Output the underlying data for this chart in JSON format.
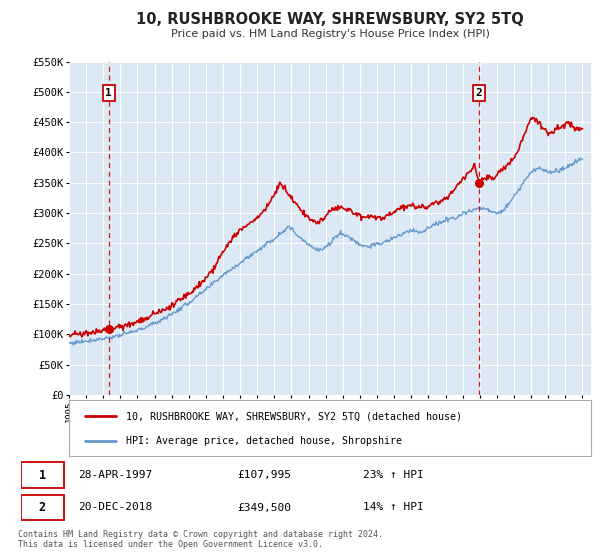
{
  "title": "10, RUSHBROOKE WAY, SHREWSBURY, SY2 5TQ",
  "subtitle": "Price paid vs. HM Land Registry's House Price Index (HPI)",
  "legend_line1": "10, RUSHBROOKE WAY, SHREWSBURY, SY2 5TQ (detached house)",
  "legend_line2": "HPI: Average price, detached house, Shropshire",
  "sale1_date": "28-APR-1997",
  "sale1_price": 107995,
  "sale1_hpi": "23% ↑ HPI",
  "sale2_date": "20-DEC-2018",
  "sale2_price": 349500,
  "sale2_hpi": "14% ↑ HPI",
  "footnote": "Contains HM Land Registry data © Crown copyright and database right 2024.\nThis data is licensed under the Open Government Licence v3.0.",
  "xmin": 1995.0,
  "xmax": 2025.5,
  "ymin": 0,
  "ymax": 550000,
  "sale1_x": 1997.32,
  "sale2_x": 2018.97,
  "red_color": "#cc0000",
  "blue_color": "#6699cc",
  "plot_bg": "#dce9f5",
  "grid_color": "#ffffff",
  "hpi_anchors": [
    [
      1995.0,
      85000
    ],
    [
      1996.0,
      89000
    ],
    [
      1997.0,
      93000
    ],
    [
      1998.0,
      98000
    ],
    [
      1999.0,
      106000
    ],
    [
      2000.0,
      118000
    ],
    [
      2001.0,
      133000
    ],
    [
      2002.0,
      152000
    ],
    [
      2003.0,
      173000
    ],
    [
      2004.0,
      198000
    ],
    [
      2005.0,
      218000
    ],
    [
      2006.0,
      238000
    ],
    [
      2007.0,
      258000
    ],
    [
      2007.8,
      278000
    ],
    [
      2008.5,
      260000
    ],
    [
      2009.5,
      238000
    ],
    [
      2010.0,
      242000
    ],
    [
      2010.8,
      268000
    ],
    [
      2011.5,
      258000
    ],
    [
      2012.0,
      248000
    ],
    [
      2012.5,
      245000
    ],
    [
      2013.0,
      248000
    ],
    [
      2013.5,
      252000
    ],
    [
      2014.0,
      260000
    ],
    [
      2014.5,
      265000
    ],
    [
      2015.0,
      272000
    ],
    [
      2015.5,
      268000
    ],
    [
      2016.0,
      275000
    ],
    [
      2016.5,
      282000
    ],
    [
      2017.0,
      288000
    ],
    [
      2017.5,
      293000
    ],
    [
      2018.0,
      298000
    ],
    [
      2018.5,
      305000
    ],
    [
      2019.0,
      308000
    ],
    [
      2019.5,
      305000
    ],
    [
      2020.0,
      298000
    ],
    [
      2020.5,
      308000
    ],
    [
      2021.0,
      328000
    ],
    [
      2021.5,
      348000
    ],
    [
      2022.0,
      368000
    ],
    [
      2022.5,
      375000
    ],
    [
      2023.0,
      368000
    ],
    [
      2023.5,
      368000
    ],
    [
      2024.0,
      375000
    ],
    [
      2024.5,
      382000
    ],
    [
      2025.0,
      390000
    ]
  ],
  "red_anchors": [
    [
      1995.0,
      100000
    ],
    [
      1995.5,
      100500
    ],
    [
      1996.0,
      102000
    ],
    [
      1996.5,
      104000
    ],
    [
      1997.32,
      107995
    ],
    [
      1997.8,
      111000
    ],
    [
      1998.5,
      116000
    ],
    [
      1999.0,
      120000
    ],
    [
      1999.5,
      125000
    ],
    [
      2000.0,
      133000
    ],
    [
      2000.5,
      140000
    ],
    [
      2001.0,
      148000
    ],
    [
      2001.5,
      158000
    ],
    [
      2002.0,
      168000
    ],
    [
      2002.5,
      180000
    ],
    [
      2003.0,
      192000
    ],
    [
      2003.5,
      210000
    ],
    [
      2004.0,
      235000
    ],
    [
      2004.5,
      258000
    ],
    [
      2005.0,
      272000
    ],
    [
      2005.5,
      282000
    ],
    [
      2006.0,
      290000
    ],
    [
      2006.5,
      308000
    ],
    [
      2007.0,
      330000
    ],
    [
      2007.3,
      348000
    ],
    [
      2007.8,
      330000
    ],
    [
      2008.3,
      315000
    ],
    [
      2008.8,
      298000
    ],
    [
      2009.2,
      285000
    ],
    [
      2009.8,
      290000
    ],
    [
      2010.2,
      302000
    ],
    [
      2010.8,
      310000
    ],
    [
      2011.2,
      305000
    ],
    [
      2011.8,
      298000
    ],
    [
      2012.2,
      292000
    ],
    [
      2012.8,
      295000
    ],
    [
      2013.2,
      292000
    ],
    [
      2013.8,
      298000
    ],
    [
      2014.2,
      305000
    ],
    [
      2014.8,
      310000
    ],
    [
      2015.2,
      312000
    ],
    [
      2015.8,
      308000
    ],
    [
      2016.2,
      315000
    ],
    [
      2016.8,
      322000
    ],
    [
      2017.2,
      330000
    ],
    [
      2017.5,
      340000
    ],
    [
      2017.8,
      350000
    ],
    [
      2018.2,
      360000
    ],
    [
      2018.5,
      372000
    ],
    [
      2018.7,
      380000
    ],
    [
      2018.97,
      349500
    ],
    [
      2019.2,
      355000
    ],
    [
      2019.5,
      362000
    ],
    [
      2019.8,
      358000
    ],
    [
      2020.2,
      370000
    ],
    [
      2020.5,
      375000
    ],
    [
      2020.8,
      385000
    ],
    [
      2021.2,
      400000
    ],
    [
      2021.5,
      422000
    ],
    [
      2021.8,
      445000
    ],
    [
      2022.0,
      458000
    ],
    [
      2022.2,
      455000
    ],
    [
      2022.5,
      448000
    ],
    [
      2022.8,
      438000
    ],
    [
      2023.0,
      430000
    ],
    [
      2023.3,
      435000
    ],
    [
      2023.6,
      440000
    ],
    [
      2023.9,
      445000
    ],
    [
      2024.2,
      450000
    ],
    [
      2024.5,
      440000
    ],
    [
      2024.8,
      435000
    ],
    [
      2025.0,
      440000
    ]
  ]
}
